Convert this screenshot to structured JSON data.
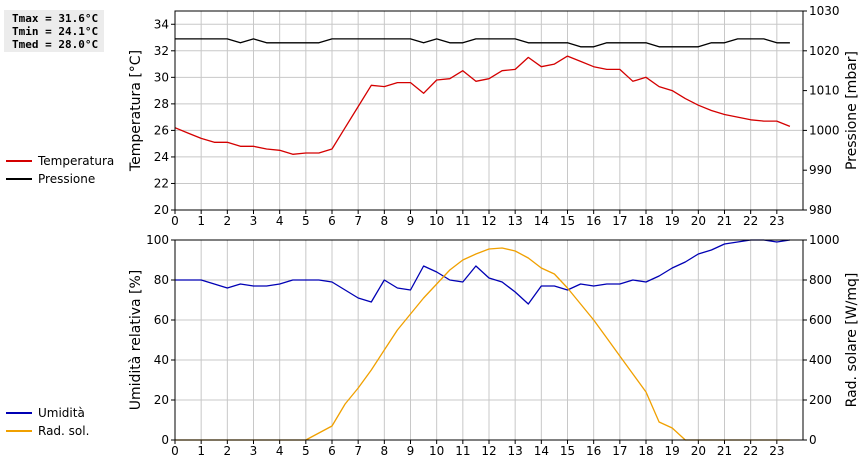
{
  "stats": {
    "tmax": "Tmax = 31.6°C",
    "tmin": "Tmin = 24.1°C",
    "tmed": "Tmed = 28.0°C"
  },
  "colors": {
    "temperature": "#d40000",
    "pressure": "#000000",
    "humidity": "#0000b4",
    "radiation": "#f0a000",
    "grid": "#c8c8c8"
  },
  "chart_data": [
    {
      "type": "line",
      "x_ticks": [
        "0",
        "1",
        "2",
        "3",
        "4",
        "5",
        "6",
        "7",
        "8",
        "9",
        "10",
        "11",
        "12",
        "13",
        "14",
        "15",
        "16",
        "17",
        "18",
        "19",
        "20",
        "21",
        "22",
        "23"
      ],
      "xlim": [
        0,
        24
      ],
      "ylabel": "Temperatura [°C]",
      "ylim": [
        20,
        35
      ],
      "y_ticks": [
        "20",
        "22",
        "24",
        "26",
        "28",
        "30",
        "32",
        "34"
      ],
      "y2label": "Pressione [mbar]",
      "y2lim": [
        980,
        1030
      ],
      "y2_ticks": [
        "980",
        "990",
        "1000",
        "1010",
        "1020",
        "1030"
      ],
      "grid": true,
      "legend_position": "left",
      "series": [
        {
          "name": "Temperatura",
          "axis": "left",
          "x": [
            0,
            0.5,
            1,
            1.5,
            2,
            2.5,
            3,
            3.5,
            4,
            4.5,
            5,
            5.5,
            6,
            6.5,
            7,
            7.5,
            8,
            8.5,
            9,
            9.5,
            10,
            10.5,
            11,
            11.5,
            12,
            12.5,
            13,
            13.5,
            14,
            14.5,
            15,
            15.5,
            16,
            16.5,
            17,
            17.5,
            18,
            18.5,
            19,
            19.5,
            20,
            20.5,
            21,
            21.5,
            22,
            22.5,
            23,
            23.5
          ],
          "y": [
            26.2,
            25.8,
            25.4,
            25.1,
            25.1,
            24.8,
            24.8,
            24.6,
            24.5,
            24.2,
            24.3,
            24.3,
            24.6,
            26.2,
            27.8,
            29.4,
            29.3,
            29.6,
            29.6,
            28.8,
            29.8,
            29.9,
            30.5,
            29.7,
            29.9,
            30.5,
            30.6,
            31.5,
            30.8,
            31.0,
            31.6,
            31.2,
            30.8,
            30.6,
            30.6,
            29.7,
            30.0,
            29.3,
            29.0,
            28.4,
            27.9,
            27.5,
            27.2,
            27.0,
            26.8,
            26.7,
            26.7,
            26.3
          ]
        },
        {
          "name": "Pressione",
          "axis": "right",
          "x": [
            0,
            0.5,
            1,
            1.5,
            2,
            2.5,
            3,
            3.5,
            4,
            4.5,
            5,
            5.5,
            6,
            6.5,
            7,
            7.5,
            8,
            8.5,
            9,
            9.5,
            10,
            10.5,
            11,
            11.5,
            12,
            12.5,
            13,
            13.5,
            14,
            14.5,
            15,
            15.5,
            16,
            16.5,
            17,
            17.5,
            18,
            18.5,
            19,
            19.5,
            20,
            20.5,
            21,
            21.5,
            22,
            22.5,
            23,
            23.5
          ],
          "y": [
            1023,
            1023,
            1023,
            1023,
            1023,
            1022,
            1023,
            1022,
            1022,
            1022,
            1022,
            1022,
            1023,
            1023,
            1023,
            1023,
            1023,
            1023,
            1023,
            1022,
            1023,
            1022,
            1022,
            1023,
            1023,
            1023,
            1023,
            1022,
            1022,
            1022,
            1022,
            1021,
            1021,
            1022,
            1022,
            1022,
            1022,
            1021,
            1021,
            1021,
            1021,
            1022,
            1022,
            1023,
            1023,
            1023,
            1022,
            1022
          ]
        }
      ]
    },
    {
      "type": "line",
      "x_ticks": [
        "0",
        "1",
        "2",
        "3",
        "4",
        "5",
        "6",
        "7",
        "8",
        "9",
        "10",
        "11",
        "12",
        "13",
        "14",
        "15",
        "16",
        "17",
        "18",
        "19",
        "20",
        "21",
        "22",
        "23"
      ],
      "xlim": [
        0,
        24
      ],
      "ylabel": "Umidità relativa [%]",
      "ylim": [
        0,
        100
      ],
      "y_ticks": [
        "0",
        "20",
        "40",
        "60",
        "80",
        "100"
      ],
      "y2label": "Rad. solare [W/mq]",
      "y2lim": [
        0,
        1000
      ],
      "y2_ticks": [
        "0",
        "200",
        "400",
        "600",
        "800",
        "1000"
      ],
      "grid": true,
      "legend_position": "left",
      "series": [
        {
          "name": "Umidità",
          "axis": "left",
          "x": [
            0,
            0.5,
            1,
            1.5,
            2,
            2.5,
            3,
            3.5,
            4,
            4.5,
            5,
            5.5,
            6,
            6.5,
            7,
            7.5,
            8,
            8.5,
            9,
            9.5,
            10,
            10.5,
            11,
            11.5,
            12,
            12.5,
            13,
            13.5,
            14,
            14.5,
            15,
            15.5,
            16,
            16.5,
            17,
            17.5,
            18,
            18.5,
            19,
            19.5,
            20,
            20.5,
            21,
            21.5,
            22,
            22.5,
            23,
            23.5
          ],
          "y": [
            80,
            80,
            80,
            78,
            76,
            78,
            77,
            77,
            78,
            80,
            80,
            80,
            79,
            75,
            71,
            69,
            80,
            76,
            75,
            87,
            84,
            80,
            79,
            87,
            81,
            79,
            74,
            68,
            77,
            77,
            75,
            78,
            77,
            78,
            78,
            80,
            79,
            82,
            86,
            89,
            93,
            95,
            98,
            99,
            100,
            100,
            99,
            100
          ]
        },
        {
          "name": "Rad. sol.",
          "axis": "right",
          "x": [
            0,
            0.5,
            1,
            1.5,
            2,
            2.5,
            3,
            3.5,
            4,
            4.5,
            5,
            5.5,
            6,
            6.5,
            7,
            7.5,
            8,
            8.5,
            9,
            9.5,
            10,
            10.5,
            11,
            11.5,
            12,
            12.5,
            13,
            13.5,
            14,
            14.5,
            15,
            15.5,
            16,
            16.5,
            17,
            17.5,
            18,
            18.5,
            19,
            19.5,
            20,
            20.5,
            21,
            21.5,
            22,
            22.5,
            23,
            23.5
          ],
          "y": [
            0,
            0,
            0,
            0,
            0,
            0,
            0,
            0,
            0,
            0,
            0,
            35,
            70,
            180,
            260,
            350,
            450,
            550,
            630,
            710,
            780,
            850,
            900,
            930,
            955,
            960,
            945,
            910,
            860,
            830,
            760,
            680,
            600,
            510,
            420,
            330,
            240,
            90,
            60,
            0,
            0,
            0,
            0,
            0,
            0,
            0,
            0,
            0
          ]
        }
      ]
    }
  ]
}
